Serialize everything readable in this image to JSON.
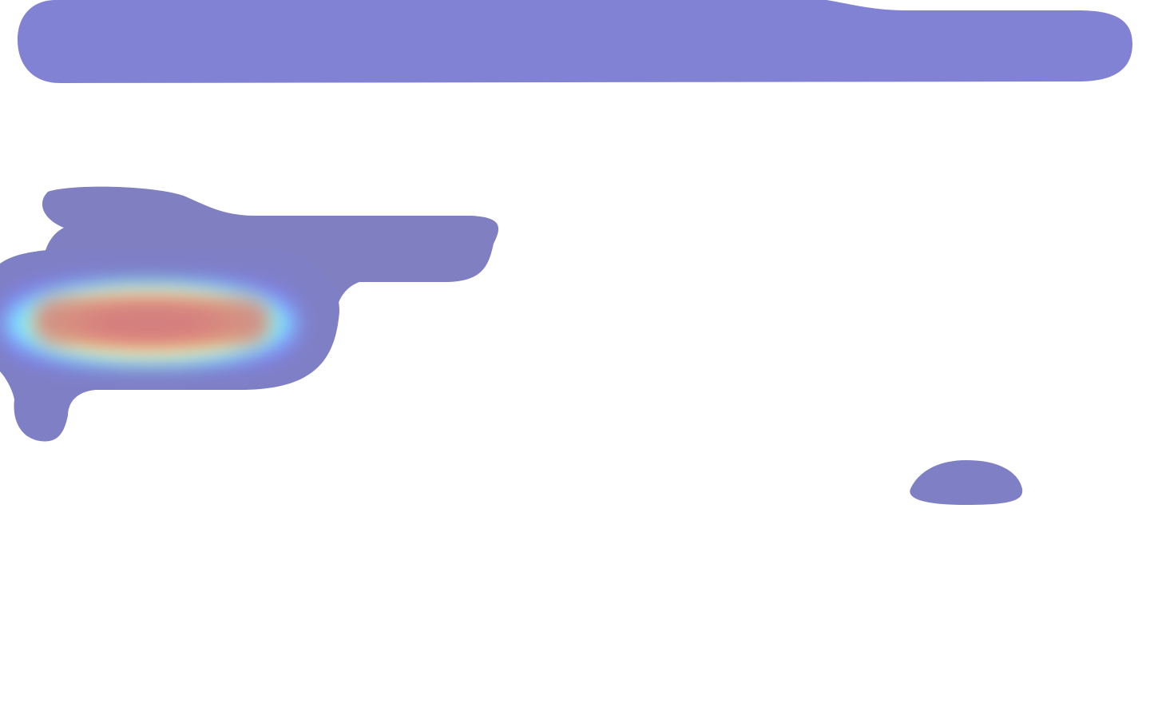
{
  "overlay": {
    "kind": "attention-heatmap",
    "description_visible_text": "",
    "colors": {
      "background": "#ffffff",
      "low": "#7f7fd0",
      "mid_low": "#7fffff",
      "mid": "#ffff7f",
      "mid_high": "#ff9f7f",
      "high": "#d07f7f"
    },
    "blobs": [
      {
        "name": "header-bar-region",
        "intensity": 0.2
      },
      {
        "name": "left-panel-upper-region",
        "intensity": 0.2
      },
      {
        "name": "left-panel-hotspot-region",
        "intensity": 1.0
      },
      {
        "name": "right-small-region",
        "intensity": 0.2
      }
    ]
  }
}
